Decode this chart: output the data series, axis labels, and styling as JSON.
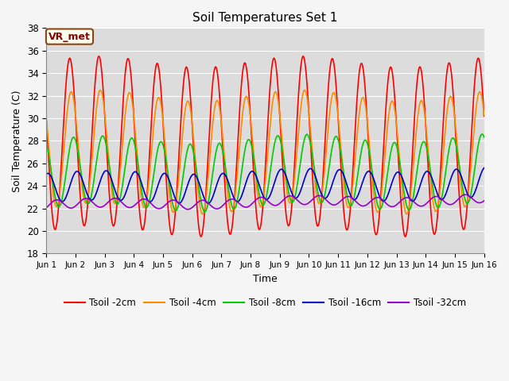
{
  "title": "Soil Temperatures Set 1",
  "xlabel": "Time",
  "ylabel": "Soil Temperature (C)",
  "ylim": [
    18,
    38
  ],
  "xlim": [
    0,
    15
  ],
  "xtick_labels": [
    "Jun 1",
    "Jun 2",
    "Jun 3",
    "Jun 4",
    "Jun 5",
    "Jun 6",
    "Jun 7",
    "Jun 8",
    "Jun 9",
    "Jun 10",
    "Jun 11",
    "Jun 12",
    "Jun 13",
    "Jun 14",
    "Jun 15",
    "Jun 16"
  ],
  "ytick_values": [
    18,
    20,
    22,
    24,
    26,
    28,
    30,
    32,
    34,
    36,
    38
  ],
  "annotation_text": "VR_met",
  "annotation_color": "#8B0000",
  "annotation_bg": "#FFFFF0",
  "annotation_border": "#8B4513",
  "colors": {
    "Tsoil -2cm": "#FF0000",
    "Tsoil -4cm": "#FF8C00",
    "Tsoil -8cm": "#00CC00",
    "Tsoil -16cm": "#0000CD",
    "Tsoil -32cm": "#9900CC"
  },
  "bg_color": "#DCDCDC",
  "grid_color": "#FFFFFF",
  "figsize": [
    6.4,
    4.8
  ],
  "dpi": 100
}
